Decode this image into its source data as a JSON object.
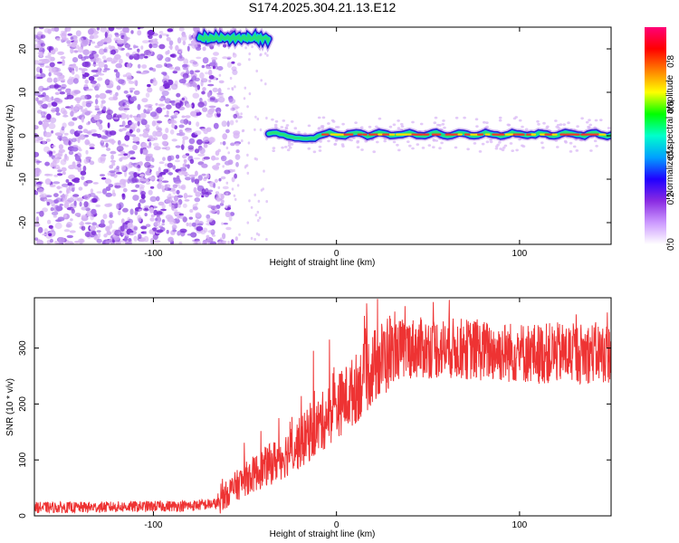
{
  "title": "S174.2025.304.21.13.E12",
  "colors": {
    "snr_line": "#ee3333",
    "speckle_light": "#d9b8f5",
    "speckle_dark": "#7a2bd8",
    "ridge_outer": "#2a1fd1",
    "ridge_mid": "#25e07a",
    "ridge_core": "#ee3b2a"
  },
  "chart_data": [
    {
      "type": "heatmap",
      "name": "spectrogram",
      "xlabel": "Height of straight line (km)",
      "ylabel": "Frequency (Hz)",
      "xlim": [
        -165,
        150
      ],
      "ylim": [
        -25,
        25
      ],
      "xticks": [
        "-100",
        "0",
        "100"
      ],
      "xtick_values": [
        -100,
        0,
        100
      ],
      "yticks": [
        "20",
        "10",
        "0",
        "-10",
        "-20"
      ],
      "ytick_values": [
        20,
        10,
        0,
        -10,
        -20
      ],
      "noise_region_x": [
        -165,
        -65
      ],
      "ridges": [
        {
          "x_start": -75,
          "x_end": -37,
          "freq_hz": 22.5
        },
        {
          "x_start": -37,
          "x_end": 150,
          "freq_hz": 0.3
        }
      ],
      "colorbar": {
        "label": "Normalized spectral amplitude",
        "range": [
          0,
          0.95
        ],
        "ticks": [
          "0.0",
          "0.2",
          "0.4",
          "0.6",
          "0.8"
        ],
        "tick_values": [
          0.0,
          0.2,
          0.4,
          0.6,
          0.8
        ],
        "colormap": [
          "#ffffff",
          "#cc99ff",
          "#8a2be2",
          "#2000ff",
          "#00a0ff",
          "#00ffcc",
          "#00ff00",
          "#ffff00",
          "#ff8000",
          "#ff0000",
          "#ff0077"
        ]
      }
    },
    {
      "type": "line",
      "name": "snr",
      "xlabel": "Height of straight line (km)",
      "ylabel": "SNR (10 * v/v)",
      "xlim": [
        -165,
        150
      ],
      "ylim": [
        0,
        390
      ],
      "xticks": [
        "-100",
        "0",
        "100"
      ],
      "xtick_values": [
        -100,
        0,
        100
      ],
      "yticks": [
        "0",
        "100",
        "200",
        "300"
      ],
      "ytick_values": [
        0,
        100,
        200,
        300
      ],
      "series": [
        {
          "name": "SNR",
          "x": [
            -165,
            -140,
            -120,
            -100,
            -80,
            -65,
            -58,
            -50,
            -40,
            -30,
            -20,
            -10,
            0,
            10,
            20,
            30,
            40,
            50,
            60,
            70,
            80,
            90,
            100,
            110,
            120,
            130,
            140,
            150
          ],
          "y": [
            15,
            15,
            16,
            17,
            18,
            22,
            45,
            65,
            85,
            105,
            130,
            160,
            195,
            225,
            265,
            295,
            300,
            300,
            300,
            298,
            295,
            293,
            292,
            290,
            291,
            290,
            292,
            290
          ]
        }
      ]
    }
  ]
}
